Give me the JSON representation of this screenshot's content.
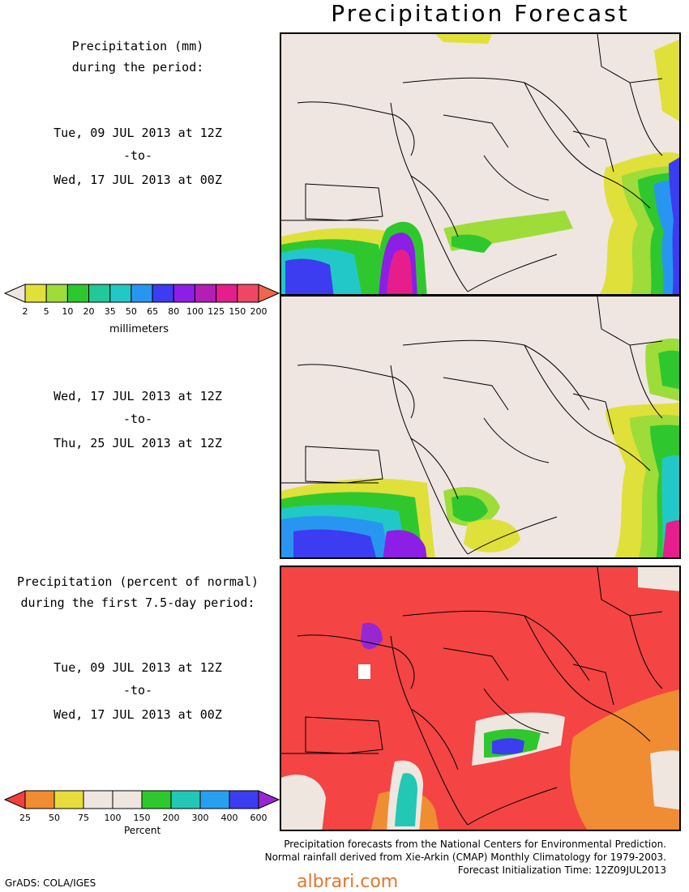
{
  "title": "Precipitation Forecast",
  "panel1": {
    "heading_line1": "Precipitation (mm)",
    "heading_line2": "during the period:",
    "start": "Tue, 09 JUL 2013 at 12Z",
    "sep": "-to-",
    "end": "Wed, 17 JUL 2013 at 00Z"
  },
  "panel2": {
    "start": "Wed, 17 JUL 2013 at 12Z",
    "sep": "-to-",
    "end": "Thu, 25 JUL 2013 at 12Z"
  },
  "panel3": {
    "heading_line1": "Precipitation (percent of normal)",
    "heading_line2": "during the first 7.5-day period:",
    "start": "Tue, 09 JUL 2013 at 12Z",
    "sep": "-to-",
    "end": "Wed, 17 JUL 2013 at 00Z"
  },
  "legend_mm": {
    "unit": "millimeters",
    "ticks": [
      "2",
      "5",
      "10",
      "20",
      "35",
      "50",
      "65",
      "80",
      "100",
      "125",
      "150",
      "200"
    ],
    "colors": [
      "#e0e03a",
      "#9edc3a",
      "#2ec82e",
      "#22c896",
      "#22c8c8",
      "#2896f0",
      "#3c3cf0",
      "#8c1ee6",
      "#b41eb4",
      "#e61e8c",
      "#f04664"
    ],
    "end_colors": [
      "#f0e6e0",
      "#f06450"
    ]
  },
  "legend_pct": {
    "unit": "Percent",
    "ticks": [
      "25",
      "50",
      "75",
      "100",
      "150",
      "200",
      "300",
      "400",
      "600"
    ],
    "colors": [
      "#f08c32",
      "#e6dc3c",
      "#f0e6e0",
      "#f0e6e0",
      "#2ec82e",
      "#22c8b4",
      "#28a0f0",
      "#3c3cf0"
    ],
    "end_colors": [
      "#f04040",
      "#9628d2"
    ]
  },
  "colors": {
    "land": "#efe6e1",
    "border": "#000000",
    "deficit": "#f44444"
  },
  "footer": {
    "line1": "Precipitation forecasts from the National Centers for Environmental Prediction.",
    "line2": "Normal rainfall derived from Xie-Arkin (CMAP) Monthly Climatology for 1979-2003.",
    "line3": "Forecast Initialization Time: 12Z09JUL2013"
  },
  "credit": "GrADS: COLA/IGES",
  "watermark": "albrari.com"
}
